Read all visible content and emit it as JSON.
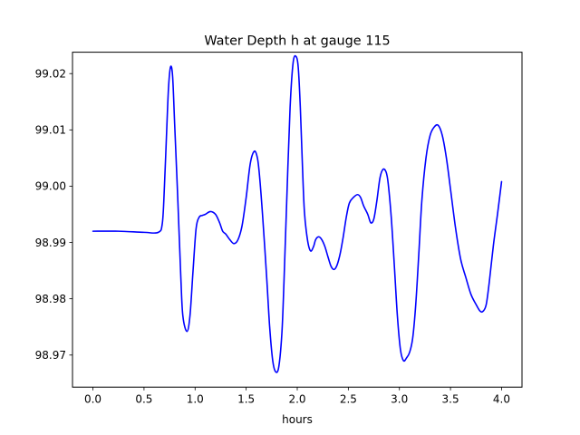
{
  "chart_data": {
    "type": "line",
    "title": "Water Depth h at gauge 115",
    "xlabel": "hours",
    "ylabel": "",
    "xlim": [
      -0.2,
      4.2
    ],
    "ylim": [
      98.9643,
      99.0238
    ],
    "xticks": [
      0.0,
      0.5,
      1.0,
      1.5,
      2.0,
      2.5,
      3.0,
      3.5,
      4.0
    ],
    "xtick_labels": [
      "0.0",
      "0.5",
      "1.0",
      "1.5",
      "2.0",
      "2.5",
      "3.0",
      "3.5",
      "4.0"
    ],
    "yticks": [
      98.97,
      98.98,
      98.99,
      99.0,
      99.01,
      99.02
    ],
    "ytick_labels": [
      "98.97",
      "98.98",
      "98.99",
      "99.00",
      "99.01",
      "99.02"
    ],
    "grid": false,
    "legend": "none",
    "color": "#0000ff",
    "series": [
      {
        "x": [
          0.0,
          0.25,
          0.5,
          0.64,
          0.68,
          0.7,
          0.72,
          0.74,
          0.76,
          0.78,
          0.8,
          0.83,
          0.86,
          0.88,
          0.92,
          0.95,
          0.98,
          1.01,
          1.04,
          1.07,
          1.1,
          1.15,
          1.2,
          1.24,
          1.27,
          1.3,
          1.34,
          1.38,
          1.42,
          1.46,
          1.5,
          1.54,
          1.58,
          1.61,
          1.63,
          1.66,
          1.7,
          1.73,
          1.76,
          1.79,
          1.82,
          1.85,
          1.87,
          1.9,
          1.93,
          1.96,
          1.99,
          2.01,
          2.03,
          2.05,
          2.07,
          2.1,
          2.13,
          2.16,
          2.18,
          2.21,
          2.24,
          2.27,
          2.3,
          2.33,
          2.36,
          2.39,
          2.42,
          2.45,
          2.48,
          2.51,
          2.55,
          2.59,
          2.62,
          2.65,
          2.69,
          2.72,
          2.75,
          2.78,
          2.81,
          2.84,
          2.87,
          2.89,
          2.92,
          2.95,
          2.98,
          3.01,
          3.04,
          3.07,
          3.1,
          3.13,
          3.16,
          3.19,
          3.22,
          3.26,
          3.3,
          3.34,
          3.38,
          3.42,
          3.46,
          3.5,
          3.55,
          3.6,
          3.65,
          3.7,
          3.75,
          3.79,
          3.82,
          3.85,
          3.88,
          3.92,
          3.96,
          4.0
        ],
        "y": [
          98.992,
          98.992,
          98.9918,
          98.9918,
          98.9935,
          99.0,
          99.009,
          99.0175,
          99.0212,
          99.0195,
          99.011,
          98.998,
          98.984,
          98.977,
          98.9742,
          98.977,
          98.985,
          98.9925,
          98.9945,
          98.9948,
          98.995,
          98.9955,
          98.995,
          98.9935,
          98.992,
          98.9915,
          98.9905,
          98.9898,
          98.9905,
          98.993,
          98.998,
          99.004,
          99.0062,
          99.005,
          99.002,
          98.995,
          98.984,
          98.975,
          98.969,
          98.967,
          98.968,
          98.974,
          98.983,
          98.999,
          99.014,
          99.022,
          99.023,
          99.021,
          99.014,
          99.004,
          98.9955,
          98.9905,
          98.9885,
          98.9893,
          98.9905,
          98.991,
          98.9905,
          98.9893,
          98.9875,
          98.9858,
          98.9852,
          98.986,
          98.988,
          98.991,
          98.9945,
          98.997,
          98.998,
          98.9985,
          98.998,
          98.9965,
          98.995,
          98.9935,
          98.9942,
          98.9975,
          99.0015,
          99.003,
          99.0025,
          99.0005,
          98.9945,
          98.986,
          98.977,
          98.971,
          98.969,
          98.9695,
          98.9705,
          98.973,
          98.979,
          98.988,
          98.9975,
          99.005,
          99.009,
          99.0105,
          99.0108,
          99.009,
          99.005,
          98.9995,
          98.9925,
          98.987,
          98.9838,
          98.9808,
          98.979,
          98.9778,
          98.9778,
          98.979,
          98.983,
          98.9895,
          98.995,
          99.0008
        ]
      }
    ]
  }
}
